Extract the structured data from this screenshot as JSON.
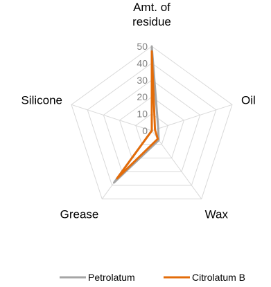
{
  "chart_data": {
    "type": "radar",
    "title": "",
    "categories": [
      "Amt. of residue",
      "Oil",
      "Wax",
      "Grease",
      "Silicone"
    ],
    "category_lines": [
      [
        "Amt. of",
        "residue"
      ],
      [
        "Oil"
      ],
      [
        "Wax"
      ],
      [
        "Grease"
      ],
      [
        "Silicone"
      ]
    ],
    "r_range": [
      0,
      50
    ],
    "r_ticks": [
      0,
      10,
      20,
      30,
      40,
      50
    ],
    "r_tick_labels": [
      "0",
      "10",
      "20",
      "30",
      "40",
      "50"
    ],
    "grid": true,
    "legend_position": "bottom-right",
    "series": [
      {
        "name": "Petrolatum",
        "values": [
          50,
          4,
          7,
          38,
          0
        ],
        "color": "#a5a5a5"
      },
      {
        "name": "Citrolatum B",
        "values": [
          47,
          2,
          6,
          35,
          0
        ],
        "color": "#e36c0a"
      }
    ]
  },
  "colors": {
    "grid": "#d9d9d9",
    "tick_text": "#7f7f7f",
    "label_text": "#000000"
  }
}
